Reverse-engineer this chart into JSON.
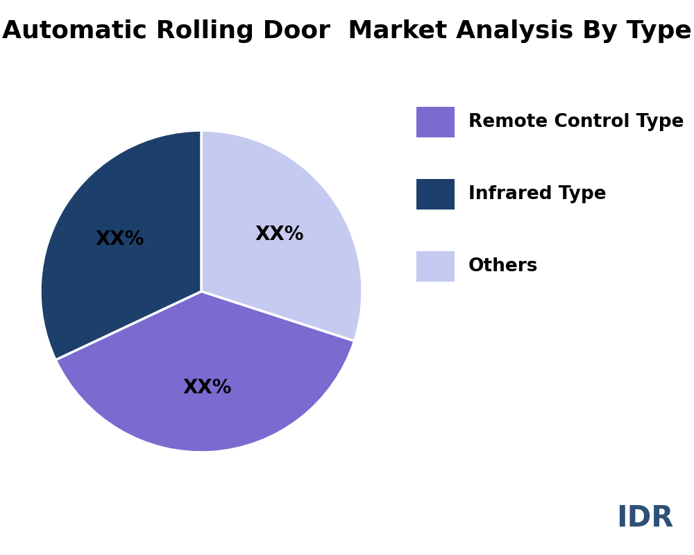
{
  "title": "Automatic Rolling Door  Market Analysis By Type",
  "slices": [
    {
      "label": "Others",
      "value": 30,
      "color": "#C5CAF0"
    },
    {
      "label": "Remote Control Type",
      "value": 38,
      "color": "#7B6AD0"
    },
    {
      "label": "Infrared Type",
      "value": 32,
      "color": "#1D3F6B"
    }
  ],
  "autopct_labels": [
    "XX%",
    "XX%",
    "XX%"
  ],
  "title_fontsize": 26,
  "title_fontweight": "bold",
  "label_fontsize": 20,
  "legend_fontsize": 19,
  "background_color": "#FFFFFF",
  "text_color": "#000000",
  "watermark_text": "IDR",
  "watermark_color": "#2E5077",
  "watermark_fontsize": 30,
  "start_angle": 90
}
